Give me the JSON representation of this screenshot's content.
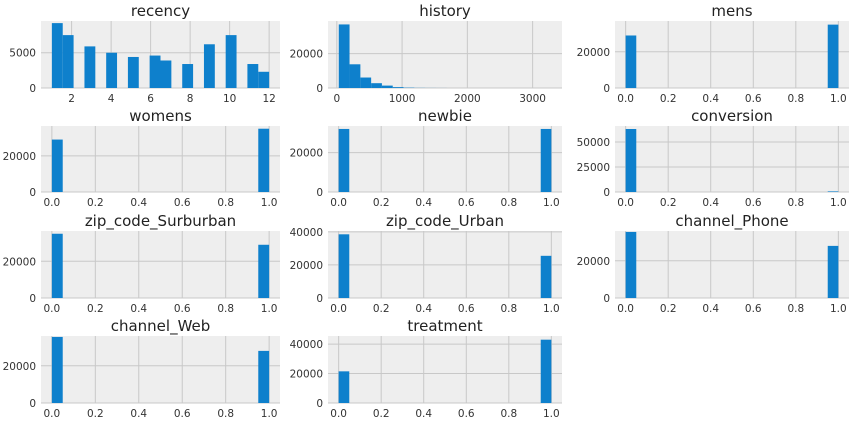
{
  "chart_data": [
    {
      "type": "bar",
      "title": "recency",
      "grid": true,
      "xlim": [
        0.45,
        12.55
      ],
      "ylim": [
        0,
        9500
      ],
      "xticks": [
        2,
        4,
        6,
        8,
        10,
        12
      ],
      "xtick_labels": [
        "2",
        "4",
        "6",
        "8",
        "10",
        "12"
      ],
      "yticks": [
        0,
        5000
      ],
      "ytick_labels": [
        "0",
        "5000"
      ],
      "bins": [
        [
          1,
          1.55,
          9200
        ],
        [
          1.55,
          2.1,
          7500
        ],
        [
          2.65,
          3.2,
          5900
        ],
        [
          3.2,
          3.75,
          0
        ],
        [
          3.75,
          4.3,
          5000
        ],
        [
          4.85,
          5.4,
          4400
        ],
        [
          5.95,
          6.5,
          4600
        ],
        [
          6.5,
          7.05,
          3900
        ],
        [
          7.6,
          8.15,
          3400
        ],
        [
          8.7,
          9.25,
          6200
        ],
        [
          9.8,
          10.35,
          7500
        ],
        [
          10.9,
          11.45,
          3400
        ],
        [
          11.45,
          12,
          2300
        ]
      ]
    },
    {
      "type": "bar",
      "title": "history",
      "grid": true,
      "xlim": [
        -135,
        3450
      ],
      "ylim": [
        0,
        39000
      ],
      "xticks": [
        0,
        1000,
        2000,
        3000
      ],
      "xtick_labels": [
        "0",
        "1000",
        "2000",
        "3000"
      ],
      "yticks": [
        0,
        20000
      ],
      "ytick_labels": [
        "0",
        "20000"
      ],
      "bins": [
        [
          30,
          195,
          37000
        ],
        [
          195,
          361,
          13800
        ],
        [
          361,
          526,
          6100
        ],
        [
          526,
          691,
          2800
        ],
        [
          691,
          857,
          1400
        ],
        [
          857,
          1022,
          500
        ],
        [
          1022,
          1188,
          200
        ],
        [
          1188,
          1353,
          80
        ],
        [
          1353,
          1518,
          40
        ],
        [
          1518,
          1684,
          20
        ]
      ]
    },
    {
      "type": "bar",
      "title": "mens",
      "grid": true,
      "xlim": [
        -0.05,
        1.05
      ],
      "ylim": [
        0,
        37000
      ],
      "xticks": [
        0,
        0.2,
        0.4,
        0.6,
        0.8,
        1
      ],
      "xtick_labels": [
        "0.0",
        "0.2",
        "0.4",
        "0.6",
        "0.8",
        "1.0"
      ],
      "yticks": [
        0,
        20000
      ],
      "ytick_labels": [
        "0",
        "20000"
      ],
      "bins": [
        [
          0,
          0.05,
          29000
        ],
        [
          0.95,
          1,
          35000
        ]
      ]
    },
    {
      "type": "bar",
      "title": "womens",
      "grid": true,
      "xlim": [
        -0.05,
        1.05
      ],
      "ylim": [
        0,
        36500
      ],
      "xticks": [
        0,
        0.2,
        0.4,
        0.6,
        0.8,
        1
      ],
      "xtick_labels": [
        "0.0",
        "0.2",
        "0.4",
        "0.6",
        "0.8",
        "1.0"
      ],
      "yticks": [
        0,
        20000
      ],
      "ytick_labels": [
        "0",
        "20000"
      ],
      "bins": [
        [
          0,
          0.05,
          29000
        ],
        [
          0.95,
          1,
          35000
        ]
      ]
    },
    {
      "type": "bar",
      "title": "newbie",
      "grid": true,
      "xlim": [
        -0.05,
        1.05
      ],
      "ylim": [
        0,
        33500
      ],
      "xticks": [
        0,
        0.2,
        0.4,
        0.6,
        0.8,
        1
      ],
      "xtick_labels": [
        "0.0",
        "0.2",
        "0.4",
        "0.6",
        "0.8",
        "1.0"
      ],
      "yticks": [
        0,
        20000
      ],
      "ytick_labels": [
        "0",
        "20000"
      ],
      "bins": [
        [
          0,
          0.05,
          32000
        ],
        [
          0.95,
          1,
          32000
        ]
      ]
    },
    {
      "type": "bar",
      "title": "conversion",
      "grid": true,
      "xlim": [
        -0.05,
        1.05
      ],
      "ylim": [
        0,
        66000
      ],
      "xticks": [
        0,
        0.2,
        0.4,
        0.6,
        0.8,
        1
      ],
      "xtick_labels": [
        "0.0",
        "0.2",
        "0.4",
        "0.6",
        "0.8",
        "1.0"
      ],
      "yticks": [
        0,
        25000,
        50000
      ],
      "ytick_labels": [
        "0",
        "25000",
        "50000"
      ],
      "bins": [
        [
          0,
          0.05,
          63000
        ],
        [
          0.95,
          1,
          600
        ]
      ]
    },
    {
      "type": "bar",
      "title": "zip_code_Surburban",
      "grid": true,
      "xlim": [
        -0.05,
        1.05
      ],
      "ylim": [
        0,
        36500
      ],
      "xticks": [
        0,
        0.2,
        0.4,
        0.6,
        0.8,
        1
      ],
      "xtick_labels": [
        "0.0",
        "0.2",
        "0.4",
        "0.6",
        "0.8",
        "1.0"
      ],
      "yticks": [
        0,
        20000
      ],
      "ytick_labels": [
        "0",
        "20000"
      ],
      "bins": [
        [
          0,
          0.05,
          35000
        ],
        [
          0.95,
          1,
          29000
        ]
      ]
    },
    {
      "type": "bar",
      "title": "zip_code_Urban",
      "grid": true,
      "xlim": [
        -0.05,
        1.05
      ],
      "ylim": [
        0,
        40500
      ],
      "xticks": [
        0,
        0.2,
        0.4,
        0.6,
        0.8,
        1
      ],
      "xtick_labels": [
        "0.0",
        "0.2",
        "0.4",
        "0.6",
        "0.8",
        "1.0"
      ],
      "yticks": [
        0,
        20000,
        40000
      ],
      "ytick_labels": [
        "0",
        "20000",
        "40000"
      ],
      "bins": [
        [
          0,
          0.05,
          38500
        ],
        [
          0.95,
          1,
          25500
        ]
      ]
    },
    {
      "type": "bar",
      "title": "channel_Phone",
      "grid": true,
      "xlim": [
        -0.05,
        1.05
      ],
      "ylim": [
        0,
        36000
      ],
      "xticks": [
        0,
        0.2,
        0.4,
        0.6,
        0.8,
        1
      ],
      "xtick_labels": [
        "0.0",
        "0.2",
        "0.4",
        "0.6",
        "0.8",
        "1.0"
      ],
      "yticks": [
        0,
        20000
      ],
      "ytick_labels": [
        "0",
        "20000"
      ],
      "bins": [
        [
          0,
          0.05,
          35500
        ],
        [
          0.95,
          1,
          28000
        ]
      ]
    },
    {
      "type": "bar",
      "title": "channel_Web",
      "grid": true,
      "xlim": [
        -0.05,
        1.05
      ],
      "ylim": [
        0,
        36000
      ],
      "xticks": [
        0,
        0.2,
        0.4,
        0.6,
        0.8,
        1
      ],
      "xtick_labels": [
        "0.0",
        "0.2",
        "0.4",
        "0.6",
        "0.8",
        "1.0"
      ],
      "yticks": [
        0,
        20000
      ],
      "ytick_labels": [
        "0",
        "20000"
      ],
      "bins": [
        [
          0,
          0.05,
          35500
        ],
        [
          0.95,
          1,
          28000
        ]
      ]
    },
    {
      "type": "bar",
      "title": "treatment",
      "grid": true,
      "xlim": [
        -0.05,
        1.05
      ],
      "ylim": [
        0,
        45500
      ],
      "xticks": [
        0,
        0.2,
        0.4,
        0.6,
        0.8,
        1
      ],
      "xtick_labels": [
        "0.0",
        "0.2",
        "0.4",
        "0.6",
        "0.8",
        "1.0"
      ],
      "yticks": [
        0,
        20000,
        40000
      ],
      "ytick_labels": [
        "0",
        "20000",
        "40000"
      ],
      "bins": [
        [
          0,
          0.05,
          21500
        ],
        [
          0.95,
          1,
          43000
        ]
      ]
    }
  ],
  "colors": {
    "bar": "#0e80cc",
    "panel_background": "#eeeeee",
    "grid": "#c8c8c8"
  }
}
